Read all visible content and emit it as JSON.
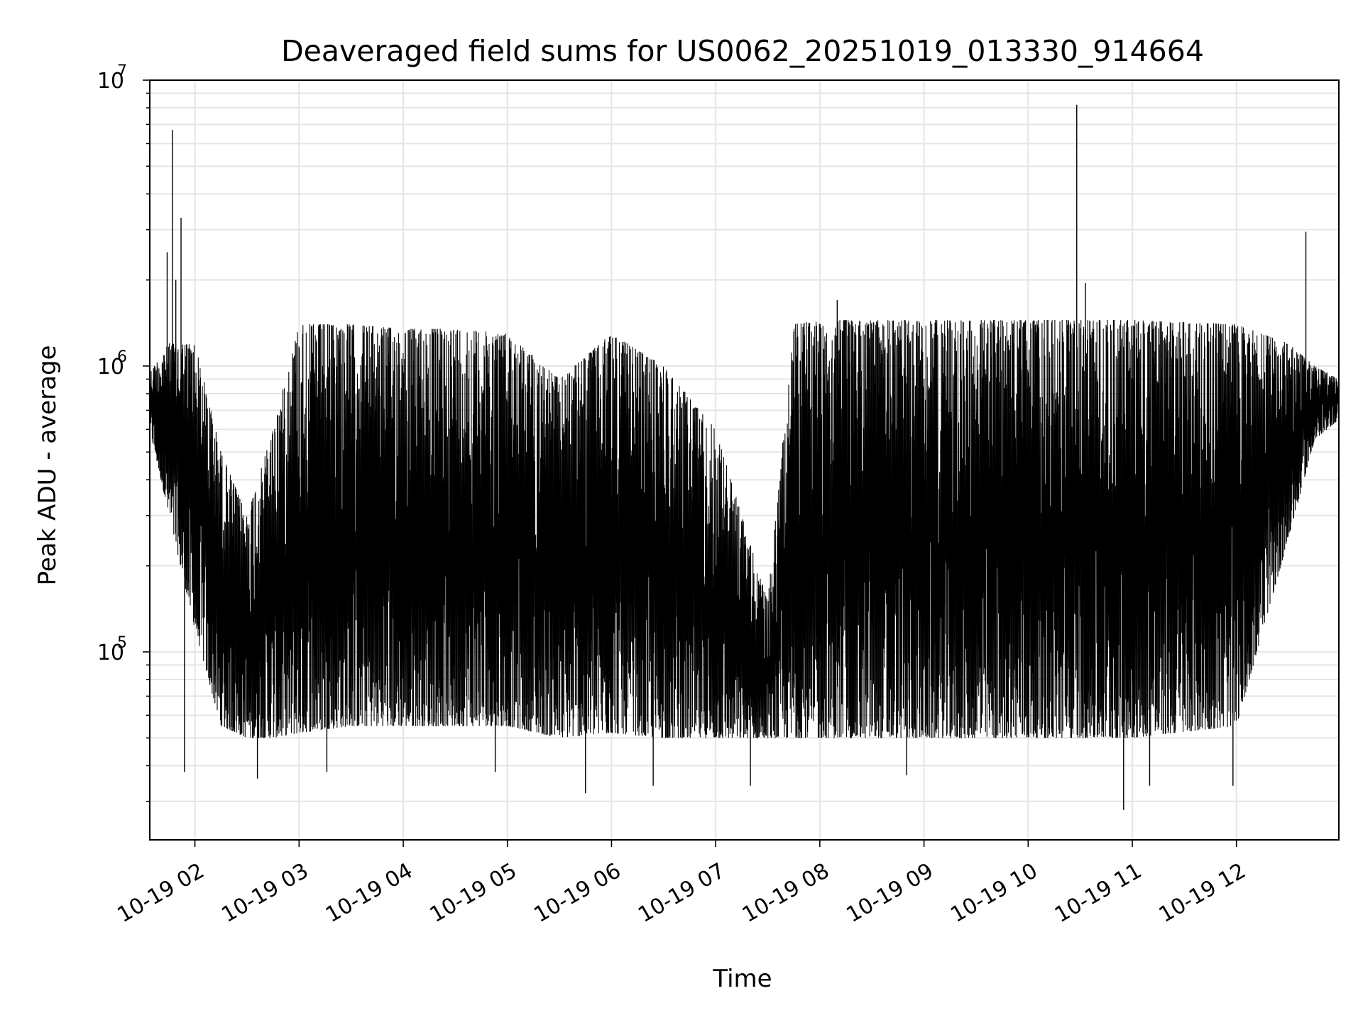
{
  "chart_data": {
    "type": "line",
    "title": "Deaveraged field sums for US0062_20251019_013330_914664",
    "xlabel": "Time",
    "ylabel": "Peak ADU - average",
    "yscale": "log",
    "xlim": [
      "10-19 01:34",
      "10-19 12:59"
    ],
    "ylim": [
      22000,
      10000000
    ],
    "grid": true,
    "line_color": "#000000",
    "grid_color": "#e5e5e5",
    "x_ticks": [
      {
        "time": "10-19 02:00",
        "label": "10-19 02"
      },
      {
        "time": "10-19 03:00",
        "label": "10-19 03"
      },
      {
        "time": "10-19 04:00",
        "label": "10-19 04"
      },
      {
        "time": "10-19 05:00",
        "label": "10-19 05"
      },
      {
        "time": "10-19 06:00",
        "label": "10-19 06"
      },
      {
        "time": "10-19 07:00",
        "label": "10-19 07"
      },
      {
        "time": "10-19 08:00",
        "label": "10-19 08"
      },
      {
        "time": "10-19 09:00",
        "label": "10-19 09"
      },
      {
        "time": "10-19 10:00",
        "label": "10-19 10"
      },
      {
        "time": "10-19 11:00",
        "label": "10-19 11"
      },
      {
        "time": "10-19 12:00",
        "label": "10-19 12"
      }
    ],
    "y_ticks": [
      {
        "value": 100000,
        "base": "10",
        "exp": "5"
      },
      {
        "value": 1000000,
        "base": "10",
        "exp": "6"
      },
      {
        "value": 10000000,
        "base": "10",
        "exp": "7"
      }
    ],
    "envelope": [
      {
        "t": "10-19 01:34",
        "hi": 950000,
        "lo": 600000
      },
      {
        "t": "10-19 01:45",
        "hi": 1200000,
        "lo": 300000
      },
      {
        "t": "10-19 02:00",
        "hi": 1200000,
        "lo": 120000
      },
      {
        "t": "10-19 02:15",
        "hi": 500000,
        "lo": 55000
      },
      {
        "t": "10-19 02:30",
        "hi": 300000,
        "lo": 50000
      },
      {
        "t": "10-19 02:45",
        "hi": 600000,
        "lo": 50000
      },
      {
        "t": "10-19 03:00",
        "hi": 1400000,
        "lo": 52000
      },
      {
        "t": "10-19 03:30",
        "hi": 1400000,
        "lo": 55000
      },
      {
        "t": "10-19 04:00",
        "hi": 1350000,
        "lo": 55000
      },
      {
        "t": "10-19 04:30",
        "hi": 1350000,
        "lo": 55000
      },
      {
        "t": "10-19 05:00",
        "hi": 1300000,
        "lo": 55000
      },
      {
        "t": "10-19 05:30",
        "hi": 900000,
        "lo": 50000
      },
      {
        "t": "10-19 06:00",
        "hi": 1300000,
        "lo": 52000
      },
      {
        "t": "10-19 06:30",
        "hi": 1000000,
        "lo": 50000
      },
      {
        "t": "10-19 07:00",
        "hi": 600000,
        "lo": 50000
      },
      {
        "t": "10-19 07:30",
        "hi": 150000,
        "lo": 50000
      },
      {
        "t": "10-19 07:45",
        "hi": 1400000,
        "lo": 50000
      },
      {
        "t": "10-19 08:00",
        "hi": 1450000,
        "lo": 50000
      },
      {
        "t": "10-19 09:00",
        "hi": 1450000,
        "lo": 50000
      },
      {
        "t": "10-19 10:00",
        "hi": 1450000,
        "lo": 50000
      },
      {
        "t": "10-19 11:00",
        "hi": 1450000,
        "lo": 50000
      },
      {
        "t": "10-19 12:00",
        "hi": 1400000,
        "lo": 55000
      },
      {
        "t": "10-19 12:30",
        "hi": 1200000,
        "lo": 250000
      },
      {
        "t": "10-19 12:45",
        "hi": 1000000,
        "lo": 550000
      },
      {
        "t": "10-19 12:59",
        "hi": 900000,
        "lo": 650000
      }
    ],
    "spikes": [
      {
        "t": "10-19 01:47",
        "value": 6700000
      },
      {
        "t": "10-19 01:52",
        "value": 3300000
      },
      {
        "t": "10-19 01:49",
        "value": 2000000
      },
      {
        "t": "10-19 01:44",
        "value": 2500000
      },
      {
        "t": "10-19 10:28",
        "value": 8200000
      },
      {
        "t": "10-19 10:33",
        "value": 1950000
      },
      {
        "t": "10-19 12:40",
        "value": 2950000
      },
      {
        "t": "10-19 08:10",
        "value": 1700000
      },
      {
        "t": "10-19 01:54",
        "value": 38000
      },
      {
        "t": "10-19 02:36",
        "value": 36000
      },
      {
        "t": "10-19 03:16",
        "value": 38000
      },
      {
        "t": "10-19 04:53",
        "value": 38000
      },
      {
        "t": "10-19 05:45",
        "value": 32000
      },
      {
        "t": "10-19 06:24",
        "value": 34000
      },
      {
        "t": "10-19 07:20",
        "value": 34000
      },
      {
        "t": "10-19 08:50",
        "value": 37000
      },
      {
        "t": "10-19 10:55",
        "value": 28000
      },
      {
        "t": "10-19 11:10",
        "value": 34000
      },
      {
        "t": "10-19 11:58",
        "value": 34000
      }
    ]
  }
}
